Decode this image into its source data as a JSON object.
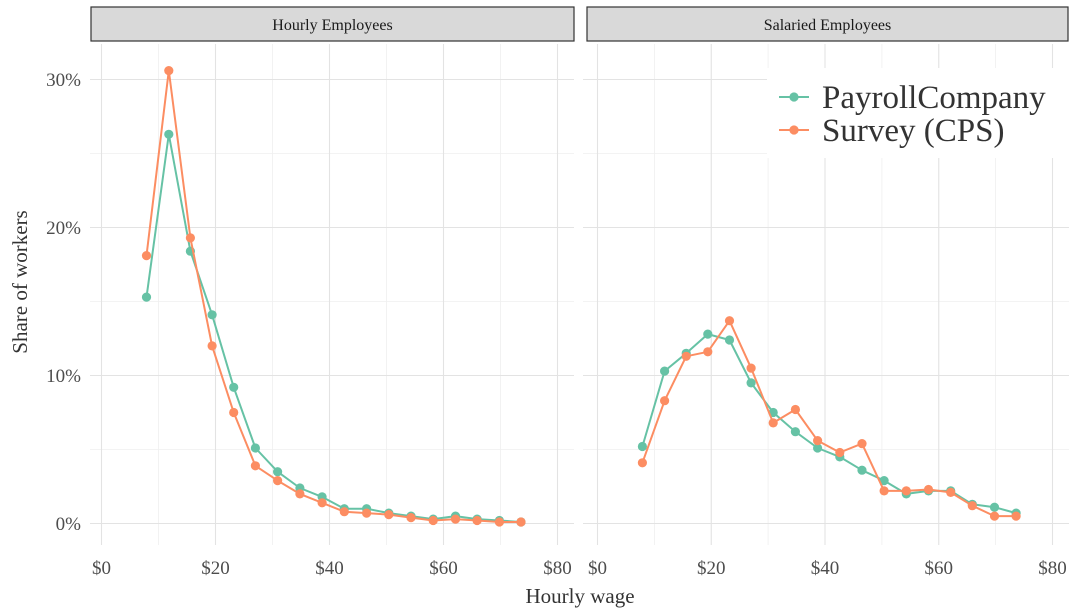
{
  "chart_data": {
    "type": "line",
    "xlabel": "Hourly wage",
    "ylabel": "Share of workers",
    "xlim": [
      0,
      80
    ],
    "ylim": [
      0,
      32
    ],
    "x_ticks": [
      0,
      20,
      40,
      60,
      80
    ],
    "x_tick_labels": [
      "$0",
      "$20",
      "$40",
      "$60",
      "$80"
    ],
    "y_ticks": [
      0,
      10,
      20,
      30
    ],
    "y_tick_labels": [
      "0%",
      "10%",
      "20%",
      "30%"
    ],
    "grid": true,
    "legend_position": "top-right",
    "series_meta": [
      {
        "name": "PayrollCompany",
        "color": "#66c2a5"
      },
      {
        "name": "Survey (CPS)",
        "color": "#fc8d62"
      }
    ],
    "panels": [
      {
        "title": "Hourly Employees",
        "series": [
          {
            "name": "PayrollCompany",
            "x": [
              7.9,
              11.8,
              15.6,
              19.4,
              23.2,
              27.0,
              30.9,
              34.8,
              38.7,
              42.6,
              46.5,
              50.4,
              54.3,
              58.2,
              62.1,
              65.9,
              69.8,
              73.6
            ],
            "y": [
              15.3,
              26.3,
              18.4,
              14.1,
              9.2,
              5.1,
              3.5,
              2.4,
              1.8,
              1.0,
              1.0,
              0.7,
              0.5,
              0.3,
              0.5,
              0.3,
              0.2,
              0.1
            ]
          },
          {
            "name": "Survey (CPS)",
            "x": [
              7.9,
              11.8,
              15.6,
              19.4,
              23.2,
              27.0,
              30.9,
              34.8,
              38.7,
              42.6,
              46.5,
              50.4,
              54.3,
              58.2,
              62.1,
              65.9,
              69.8,
              73.6
            ],
            "y": [
              18.1,
              30.6,
              19.3,
              12.0,
              7.5,
              3.9,
              2.9,
              2.0,
              1.4,
              0.8,
              0.7,
              0.6,
              0.4,
              0.2,
              0.3,
              0.2,
              0.1,
              0.1
            ]
          }
        ]
      },
      {
        "title": "Salaried Employees",
        "series": [
          {
            "name": "PayrollCompany",
            "x": [
              7.9,
              11.8,
              15.6,
              19.4,
              23.2,
              27.0,
              30.9,
              34.8,
              38.7,
              42.6,
              46.5,
              50.4,
              54.3,
              58.2,
              62.1,
              65.9,
              69.8,
              73.6
            ],
            "y": [
              5.2,
              10.3,
              11.5,
              12.8,
              12.4,
              9.5,
              7.5,
              6.2,
              5.1,
              4.5,
              3.6,
              2.9,
              2.0,
              2.2,
              2.2,
              1.3,
              1.1,
              0.7
            ]
          },
          {
            "name": "Survey (CPS)",
            "x": [
              7.9,
              11.8,
              15.6,
              19.4,
              23.2,
              27.0,
              30.9,
              34.8,
              38.7,
              42.6,
              46.5,
              50.4,
              54.3,
              58.2,
              62.1,
              65.9,
              69.8,
              73.6
            ],
            "y": [
              4.1,
              8.3,
              11.3,
              11.6,
              13.7,
              10.5,
              6.8,
              7.7,
              5.6,
              4.8,
              5.4,
              2.2,
              2.2,
              2.3,
              2.1,
              1.2,
              0.5,
              0.5
            ]
          }
        ]
      }
    ]
  }
}
